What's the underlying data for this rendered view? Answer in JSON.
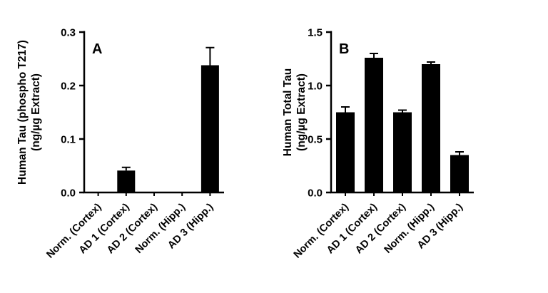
{
  "chart_data": [
    {
      "type": "bar",
      "panel_label": "A",
      "ylabel_line1": "Human Tau (phospho T217)",
      "ylabel_line2": "(ng/µg Extract)",
      "categories": [
        "Norm. (Cortex)",
        "AD 1 (Cortex)",
        "AD 2 (Cortex)",
        "Norm. (Hipp.)",
        "AD 3 (Hipp.)"
      ],
      "values": [
        0,
        0.041,
        0,
        0,
        0.238
      ],
      "errors": [
        0,
        0.006,
        0,
        0,
        0.033
      ],
      "ylim": [
        0,
        0.3
      ],
      "yticks": [
        0.0,
        0.1,
        0.2,
        0.3
      ],
      "ytick_labels": [
        "0.0",
        "0.1",
        "0.2",
        "0.3"
      ],
      "bar_color": "#000000",
      "axis_color": "#000000",
      "grid": false,
      "legend": "none"
    },
    {
      "type": "bar",
      "panel_label": "B",
      "ylabel_line1": "Human Total Tau",
      "ylabel_line2": "(ng/µg Extract)",
      "categories": [
        "Norm. (Cortex)",
        "AD 1 (Cortex)",
        "AD 2 (Cortex)",
        "Norm. (Hipp.)",
        "AD 3 (Hipp.)"
      ],
      "values": [
        0.75,
        1.26,
        0.75,
        1.2,
        0.35
      ],
      "errors": [
        0.05,
        0.04,
        0.02,
        0.02,
        0.03
      ],
      "ylim": [
        0,
        1.5
      ],
      "yticks": [
        0.0,
        0.5,
        1.0,
        1.5
      ],
      "ytick_labels": [
        "0.0",
        "0.5",
        "1.0",
        "1.5"
      ],
      "bar_color": "#000000",
      "axis_color": "#000000",
      "grid": false,
      "legend": "none"
    }
  ]
}
